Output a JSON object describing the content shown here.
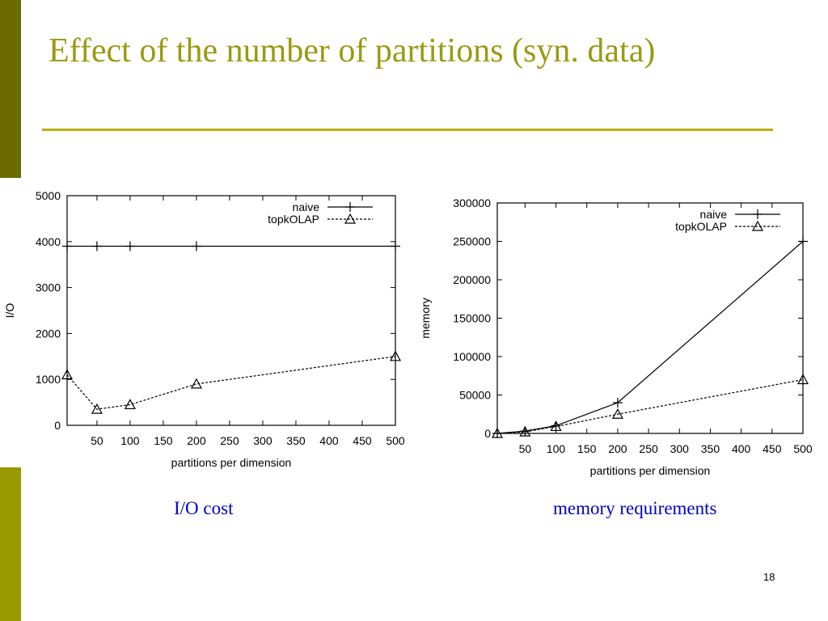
{
  "slide": {
    "title": "Effect of the number of partitions (syn. data)",
    "page_number": "18",
    "colors": {
      "accent_dark": "#6b6b00",
      "accent": "#999900",
      "title": "#9a9a14",
      "caption": "#0000cc"
    }
  },
  "captions": [
    "I/O cost",
    "memory requirements"
  ],
  "chart_data": [
    {
      "type": "line",
      "title": "",
      "xlabel": "partitions per dimension",
      "ylabel": "I/O",
      "x_ticks": [
        50,
        100,
        150,
        200,
        250,
        300,
        350,
        400,
        450,
        500
      ],
      "y_ticks": [
        0,
        1000,
        2000,
        3000,
        4000,
        5000
      ],
      "xlim": [
        5,
        500
      ],
      "ylim": [
        0,
        5000
      ],
      "legend_position": "top-right",
      "series": [
        {
          "name": "naive",
          "marker": "plus",
          "dash": "solid",
          "x": [
            5,
            50,
            100,
            200,
            500
          ],
          "y": [
            3900,
            3900,
            3900,
            3900,
            3900
          ]
        },
        {
          "name": "topkOLAP",
          "marker": "triangle",
          "dash": "dashed",
          "x": [
            5,
            50,
            100,
            200,
            500
          ],
          "y": [
            1100,
            350,
            450,
            900,
            1500
          ]
        }
      ]
    },
    {
      "type": "line",
      "title": "",
      "xlabel": "partitions per dimension",
      "ylabel": "memory",
      "x_ticks": [
        50,
        100,
        150,
        200,
        250,
        300,
        350,
        400,
        450,
        500
      ],
      "y_ticks": [
        0,
        50000,
        100000,
        150000,
        200000,
        250000,
        300000
      ],
      "xlim": [
        5,
        500
      ],
      "ylim": [
        0,
        300000
      ],
      "legend_position": "top-right",
      "series": [
        {
          "name": "naive",
          "marker": "plus",
          "dash": "solid",
          "x": [
            5,
            50,
            100,
            200,
            500
          ],
          "y": [
            0,
            3000,
            10000,
            40000,
            250000
          ]
        },
        {
          "name": "topkOLAP",
          "marker": "triangle",
          "dash": "dashed",
          "x": [
            5,
            50,
            100,
            200,
            500
          ],
          "y": [
            0,
            2000,
            9000,
            25000,
            70000
          ]
        }
      ]
    }
  ]
}
